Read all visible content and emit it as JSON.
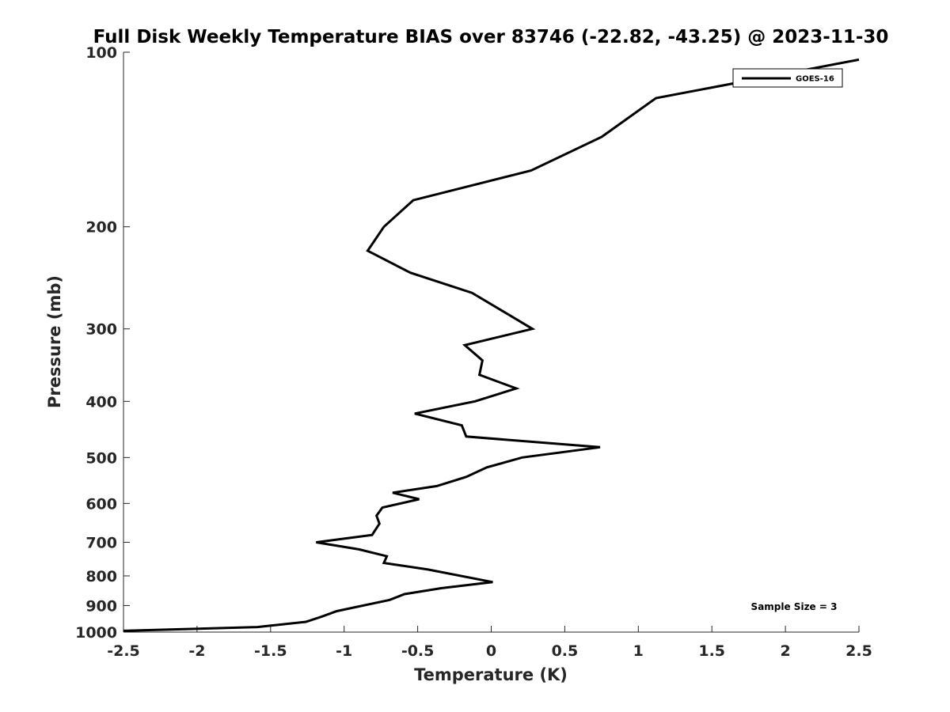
{
  "chart_data": {
    "type": "line",
    "title": "Full Disk Weekly Temperature BIAS over 83746 (-22.82, -43.25) @ 2023-11-30",
    "xlabel": "Temperature (K)",
    "ylabel": "Pressure (mb)",
    "xlim": [
      -2.5,
      2.5
    ],
    "ylim": [
      100,
      1000
    ],
    "y_scale": "log",
    "y_reversed": true,
    "grid": false,
    "legend_position": "top-right",
    "x_ticks": [
      -2.5,
      -2,
      -1.5,
      -1,
      -0.5,
      0,
      0.5,
      1,
      1.5,
      2,
      2.5
    ],
    "x_tick_labels": [
      "-2.5",
      "-2",
      "-1.5",
      "-1",
      "-0.5",
      "0",
      "0.5",
      "1",
      "1.5",
      "2",
      "2.5"
    ],
    "y_ticks": [
      100,
      200,
      300,
      400,
      500,
      600,
      700,
      800,
      900,
      1000
    ],
    "y_tick_labels": [
      "100",
      "200",
      "300",
      "400",
      "500",
      "600",
      "700",
      "800",
      "900",
      "1000"
    ],
    "annotation": "Sample Size = 3",
    "series": [
      {
        "name": "GOES-16",
        "color": "#000000",
        "points": [
          {
            "x": 2.5,
            "y": 103
          },
          {
            "x": 1.12,
            "y": 120
          },
          {
            "x": 0.75,
            "y": 140
          },
          {
            "x": 0.27,
            "y": 160
          },
          {
            "x": -0.53,
            "y": 180
          },
          {
            "x": -0.73,
            "y": 200
          },
          {
            "x": -0.84,
            "y": 220
          },
          {
            "x": -0.55,
            "y": 240
          },
          {
            "x": -0.13,
            "y": 260
          },
          {
            "x": 0.28,
            "y": 300
          },
          {
            "x": -0.18,
            "y": 320
          },
          {
            "x": -0.06,
            "y": 340
          },
          {
            "x": -0.08,
            "y": 360
          },
          {
            "x": 0.17,
            "y": 380
          },
          {
            "x": -0.11,
            "y": 400
          },
          {
            "x": -0.52,
            "y": 420
          },
          {
            "x": -0.2,
            "y": 440
          },
          {
            "x": -0.17,
            "y": 460
          },
          {
            "x": 0.74,
            "y": 480
          },
          {
            "x": 0.21,
            "y": 500
          },
          {
            "x": -0.03,
            "y": 520
          },
          {
            "x": -0.17,
            "y": 540
          },
          {
            "x": -0.37,
            "y": 560
          },
          {
            "x": -0.67,
            "y": 575
          },
          {
            "x": -0.49,
            "y": 590
          },
          {
            "x": -0.74,
            "y": 610
          },
          {
            "x": -0.78,
            "y": 630
          },
          {
            "x": -0.76,
            "y": 650
          },
          {
            "x": -0.81,
            "y": 680
          },
          {
            "x": -1.19,
            "y": 700
          },
          {
            "x": -0.9,
            "y": 720
          },
          {
            "x": -0.71,
            "y": 740
          },
          {
            "x": -0.73,
            "y": 760
          },
          {
            "x": -0.43,
            "y": 780
          },
          {
            "x": 0.01,
            "y": 820
          },
          {
            "x": -0.34,
            "y": 840
          },
          {
            "x": -0.59,
            "y": 860
          },
          {
            "x": -0.69,
            "y": 880
          },
          {
            "x": -1.05,
            "y": 920
          },
          {
            "x": -1.15,
            "y": 940
          },
          {
            "x": -1.26,
            "y": 960
          },
          {
            "x": -1.59,
            "y": 980
          },
          {
            "x": -2.5,
            "y": 995
          }
        ]
      }
    ]
  }
}
